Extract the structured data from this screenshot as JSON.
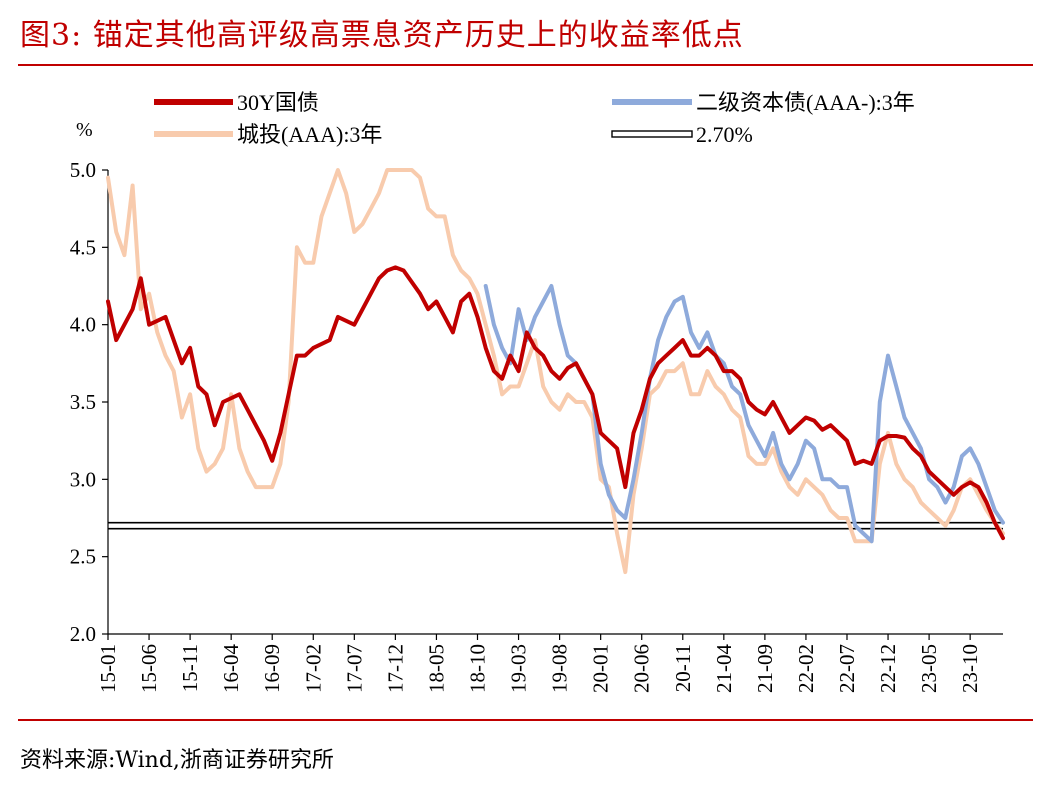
{
  "figure": {
    "title": "图3:  锚定其他高评级高票息资产历史上的收益率低点",
    "source": "资料来源:Wind,浙商证券研究所"
  },
  "colors": {
    "brand": "#c00000",
    "series_30y": "#c00000",
    "series_tier2": "#8eaadb",
    "series_chengtou": "#f8cbad",
    "reference": "#000000"
  },
  "chart_data": {
    "type": "line",
    "unit_label": "%",
    "ylim": [
      2.0,
      5.0
    ],
    "yticks": [
      "2.0",
      "2.5",
      "3.0",
      "3.5",
      "4.0",
      "4.5",
      "5.0"
    ],
    "xticks": [
      "15-01",
      "15-06",
      "15-11",
      "16-04",
      "16-09",
      "17-02",
      "17-07",
      "17-12",
      "18-05",
      "18-10",
      "19-03",
      "19-08",
      "20-01",
      "20-06",
      "20-11",
      "21-04",
      "21-09",
      "22-02",
      "22-07",
      "22-12",
      "23-05",
      "23-10"
    ],
    "x_start": "2015-01",
    "x_end": "2024-02",
    "legend_position": "top",
    "grid": false,
    "series": [
      {
        "name": "30Y国债",
        "key": "s30y",
        "points": [
          [
            "15-01",
            4.15
          ],
          [
            "15-02",
            3.9
          ],
          [
            "15-04",
            4.1
          ],
          [
            "15-05",
            4.3
          ],
          [
            "15-06",
            4.0
          ],
          [
            "15-08",
            4.05
          ],
          [
            "15-10",
            3.75
          ],
          [
            "15-11",
            3.85
          ],
          [
            "15-12",
            3.6
          ],
          [
            "16-01",
            3.55
          ],
          [
            "16-02",
            3.35
          ],
          [
            "16-03",
            3.5
          ],
          [
            "16-05",
            3.55
          ],
          [
            "16-06",
            3.45
          ],
          [
            "16-08",
            3.25
          ],
          [
            "16-09",
            3.12
          ],
          [
            "16-10",
            3.3
          ],
          [
            "16-11",
            3.55
          ],
          [
            "16-12",
            3.8
          ],
          [
            "17-01",
            3.8
          ],
          [
            "17-02",
            3.85
          ],
          [
            "17-04",
            3.9
          ],
          [
            "17-05",
            4.05
          ],
          [
            "17-07",
            4.0
          ],
          [
            "17-09",
            4.2
          ],
          [
            "17-10",
            4.3
          ],
          [
            "17-11",
            4.35
          ],
          [
            "17-12",
            4.37
          ],
          [
            "18-01",
            4.35
          ],
          [
            "18-03",
            4.2
          ],
          [
            "18-04",
            4.1
          ],
          [
            "18-05",
            4.15
          ],
          [
            "18-06",
            4.05
          ],
          [
            "18-07",
            3.95
          ],
          [
            "18-08",
            4.15
          ],
          [
            "18-09",
            4.2
          ],
          [
            "18-10",
            4.05
          ],
          [
            "18-11",
            3.85
          ],
          [
            "18-12",
            3.7
          ],
          [
            "19-01",
            3.65
          ],
          [
            "19-02",
            3.8
          ],
          [
            "19-03",
            3.7
          ],
          [
            "19-04",
            3.95
          ],
          [
            "19-05",
            3.85
          ],
          [
            "19-06",
            3.8
          ],
          [
            "19-07",
            3.7
          ],
          [
            "19-08",
            3.65
          ],
          [
            "19-09",
            3.72
          ],
          [
            "19-10",
            3.75
          ],
          [
            "19-11",
            3.65
          ],
          [
            "19-12",
            3.55
          ],
          [
            "20-01",
            3.3
          ],
          [
            "20-02",
            3.25
          ],
          [
            "20-03",
            3.2
          ],
          [
            "20-04",
            2.95
          ],
          [
            "20-05",
            3.3
          ],
          [
            "20-06",
            3.45
          ],
          [
            "20-07",
            3.65
          ],
          [
            "20-08",
            3.75
          ],
          [
            "20-09",
            3.8
          ],
          [
            "20-10",
            3.85
          ],
          [
            "20-11",
            3.9
          ],
          [
            "20-12",
            3.8
          ],
          [
            "21-01",
            3.8
          ],
          [
            "21-02",
            3.85
          ],
          [
            "21-03",
            3.8
          ],
          [
            "21-04",
            3.7
          ],
          [
            "21-05",
            3.7
          ],
          [
            "21-06",
            3.65
          ],
          [
            "21-07",
            3.5
          ],
          [
            "21-08",
            3.45
          ],
          [
            "21-09",
            3.42
          ],
          [
            "21-10",
            3.5
          ],
          [
            "21-11",
            3.4
          ],
          [
            "21-12",
            3.3
          ],
          [
            "22-01",
            3.35
          ],
          [
            "22-02",
            3.4
          ],
          [
            "22-03",
            3.38
          ],
          [
            "22-04",
            3.32
          ],
          [
            "22-05",
            3.35
          ],
          [
            "22-06",
            3.3
          ],
          [
            "22-07",
            3.25
          ],
          [
            "22-08",
            3.1
          ],
          [
            "22-09",
            3.12
          ],
          [
            "22-10",
            3.1
          ],
          [
            "22-11",
            3.25
          ],
          [
            "22-12",
            3.28
          ],
          [
            "23-01",
            3.28
          ],
          [
            "23-02",
            3.27
          ],
          [
            "23-03",
            3.2
          ],
          [
            "23-04",
            3.15
          ],
          [
            "23-05",
            3.05
          ],
          [
            "23-06",
            3.0
          ],
          [
            "23-07",
            2.95
          ],
          [
            "23-08",
            2.9
          ],
          [
            "23-09",
            2.95
          ],
          [
            "23-10",
            2.98
          ],
          [
            "23-11",
            2.95
          ],
          [
            "23-12",
            2.85
          ],
          [
            "24-01",
            2.72
          ],
          [
            "24-02",
            2.62
          ]
        ]
      },
      {
        "name": "二级资本债(AAA-):3年",
        "key": "tier2",
        "points": [
          [
            "18-11",
            4.25
          ],
          [
            "18-12",
            4.0
          ],
          [
            "19-01",
            3.85
          ],
          [
            "19-02",
            3.75
          ],
          [
            "19-03",
            4.1
          ],
          [
            "19-04",
            3.9
          ],
          [
            "19-05",
            4.05
          ],
          [
            "19-06",
            4.15
          ],
          [
            "19-07",
            4.25
          ],
          [
            "19-08",
            4.0
          ],
          [
            "19-09",
            3.8
          ],
          [
            "19-10",
            3.75
          ],
          [
            "19-11",
            3.65
          ],
          [
            "19-12",
            3.55
          ],
          [
            "20-01",
            3.1
          ],
          [
            "20-02",
            2.9
          ],
          [
            "20-03",
            2.8
          ],
          [
            "20-04",
            2.75
          ],
          [
            "20-05",
            3.0
          ],
          [
            "20-06",
            3.3
          ],
          [
            "20-07",
            3.65
          ],
          [
            "20-08",
            3.9
          ],
          [
            "20-09",
            4.05
          ],
          [
            "20-10",
            4.15
          ],
          [
            "20-11",
            4.18
          ],
          [
            "20-12",
            3.95
          ],
          [
            "21-01",
            3.85
          ],
          [
            "21-02",
            3.95
          ],
          [
            "21-03",
            3.8
          ],
          [
            "21-04",
            3.75
          ],
          [
            "21-05",
            3.6
          ],
          [
            "21-06",
            3.55
          ],
          [
            "21-07",
            3.35
          ],
          [
            "21-08",
            3.25
          ],
          [
            "21-09",
            3.15
          ],
          [
            "21-10",
            3.3
          ],
          [
            "21-11",
            3.1
          ],
          [
            "21-12",
            3.0
          ],
          [
            "22-01",
            3.1
          ],
          [
            "22-02",
            3.25
          ],
          [
            "22-03",
            3.2
          ],
          [
            "22-04",
            3.0
          ],
          [
            "22-05",
            3.0
          ],
          [
            "22-06",
            2.95
          ],
          [
            "22-07",
            2.95
          ],
          [
            "22-08",
            2.7
          ],
          [
            "22-09",
            2.65
          ],
          [
            "22-10",
            2.6
          ],
          [
            "22-11",
            3.5
          ],
          [
            "22-12",
            3.8
          ],
          [
            "23-01",
            3.6
          ],
          [
            "23-02",
            3.4
          ],
          [
            "23-03",
            3.3
          ],
          [
            "23-04",
            3.2
          ],
          [
            "23-05",
            3.0
          ],
          [
            "23-06",
            2.95
          ],
          [
            "23-07",
            2.85
          ],
          [
            "23-08",
            2.95
          ],
          [
            "23-09",
            3.15
          ],
          [
            "23-10",
            3.2
          ],
          [
            "23-11",
            3.1
          ],
          [
            "23-12",
            2.95
          ],
          [
            "24-01",
            2.8
          ],
          [
            "24-02",
            2.72
          ]
        ]
      },
      {
        "name": "城投(AAA):3年",
        "key": "ct",
        "points": [
          [
            "15-01",
            4.95
          ],
          [
            "15-02",
            4.6
          ],
          [
            "15-03",
            4.45
          ],
          [
            "15-04",
            4.9
          ],
          [
            "15-05",
            4.1
          ],
          [
            "15-06",
            4.2
          ],
          [
            "15-07",
            3.95
          ],
          [
            "15-08",
            3.8
          ],
          [
            "15-09",
            3.7
          ],
          [
            "15-10",
            3.4
          ],
          [
            "15-11",
            3.55
          ],
          [
            "15-12",
            3.2
          ],
          [
            "16-01",
            3.05
          ],
          [
            "16-02",
            3.1
          ],
          [
            "16-03",
            3.2
          ],
          [
            "16-04",
            3.55
          ],
          [
            "16-05",
            3.2
          ],
          [
            "16-06",
            3.05
          ],
          [
            "16-07",
            2.95
          ],
          [
            "16-08",
            2.95
          ],
          [
            "16-09",
            2.95
          ],
          [
            "16-10",
            3.1
          ],
          [
            "16-11",
            3.5
          ],
          [
            "16-12",
            4.5
          ],
          [
            "17-01",
            4.4
          ],
          [
            "17-02",
            4.4
          ],
          [
            "17-03",
            4.7
          ],
          [
            "17-04",
            4.85
          ],
          [
            "17-05",
            5.0
          ],
          [
            "17-06",
            4.85
          ],
          [
            "17-07",
            4.6
          ],
          [
            "17-08",
            4.65
          ],
          [
            "17-09",
            4.75
          ],
          [
            "17-10",
            4.85
          ],
          [
            "17-11",
            5.0
          ],
          [
            "17-12",
            5.0
          ],
          [
            "18-01",
            5.0
          ],
          [
            "18-02",
            5.0
          ],
          [
            "18-03",
            4.95
          ],
          [
            "18-04",
            4.75
          ],
          [
            "18-05",
            4.7
          ],
          [
            "18-06",
            4.7
          ],
          [
            "18-07",
            4.45
          ],
          [
            "18-08",
            4.35
          ],
          [
            "18-09",
            4.3
          ],
          [
            "18-10",
            4.2
          ],
          [
            "18-11",
            4.0
          ],
          [
            "18-12",
            3.8
          ],
          [
            "19-01",
            3.55
          ],
          [
            "19-02",
            3.6
          ],
          [
            "19-03",
            3.6
          ],
          [
            "19-04",
            3.75
          ],
          [
            "19-05",
            3.9
          ],
          [
            "19-06",
            3.6
          ],
          [
            "19-07",
            3.5
          ],
          [
            "19-08",
            3.45
          ],
          [
            "19-09",
            3.55
          ],
          [
            "19-10",
            3.5
          ],
          [
            "19-11",
            3.5
          ],
          [
            "19-12",
            3.4
          ],
          [
            "20-01",
            3.0
          ],
          [
            "20-02",
            2.95
          ],
          [
            "20-03",
            2.65
          ],
          [
            "20-04",
            2.4
          ],
          [
            "20-05",
            2.9
          ],
          [
            "20-06",
            3.2
          ],
          [
            "20-07",
            3.55
          ],
          [
            "20-08",
            3.6
          ],
          [
            "20-09",
            3.7
          ],
          [
            "20-10",
            3.7
          ],
          [
            "20-11",
            3.75
          ],
          [
            "20-12",
            3.55
          ],
          [
            "21-01",
            3.55
          ],
          [
            "21-02",
            3.7
          ],
          [
            "21-03",
            3.6
          ],
          [
            "21-04",
            3.55
          ],
          [
            "21-05",
            3.45
          ],
          [
            "21-06",
            3.4
          ],
          [
            "21-07",
            3.15
          ],
          [
            "21-08",
            3.1
          ],
          [
            "21-09",
            3.1
          ],
          [
            "21-10",
            3.2
          ],
          [
            "21-11",
            3.05
          ],
          [
            "21-12",
            2.95
          ],
          [
            "22-01",
            2.9
          ],
          [
            "22-02",
            3.0
          ],
          [
            "22-03",
            2.95
          ],
          [
            "22-04",
            2.9
          ],
          [
            "22-05",
            2.8
          ],
          [
            "22-06",
            2.75
          ],
          [
            "22-07",
            2.75
          ],
          [
            "22-08",
            2.6
          ],
          [
            "22-09",
            2.6
          ],
          [
            "22-10",
            2.6
          ],
          [
            "22-11",
            3.1
          ],
          [
            "22-12",
            3.3
          ],
          [
            "23-01",
            3.1
          ],
          [
            "23-02",
            3.0
          ],
          [
            "23-03",
            2.95
          ],
          [
            "23-04",
            2.85
          ],
          [
            "23-05",
            2.8
          ],
          [
            "23-06",
            2.75
          ],
          [
            "23-07",
            2.7
          ],
          [
            "23-08",
            2.8
          ],
          [
            "23-09",
            2.95
          ],
          [
            "23-10",
            3.0
          ],
          [
            "23-11",
            2.9
          ],
          [
            "23-12",
            2.8
          ],
          [
            "24-01",
            2.72
          ],
          [
            "24-02",
            2.65
          ]
        ]
      }
    ],
    "reference_line": {
      "name": "2.70%",
      "value": 2.7
    }
  }
}
